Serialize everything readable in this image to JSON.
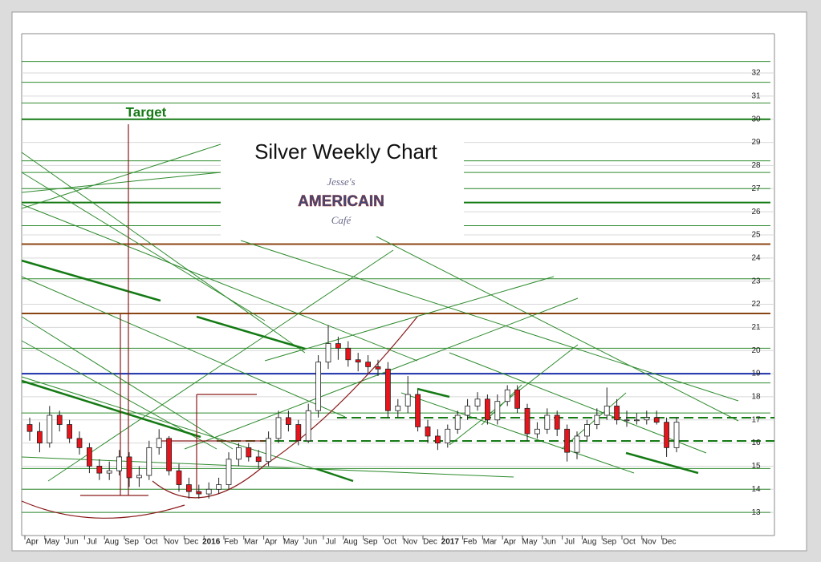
{
  "chart_data": {
    "type": "candlestick",
    "title": "Silver Weekly Chart",
    "annotation": "Target",
    "logo": {
      "line1": "Jesse's",
      "line2": "AMERICAIN",
      "line3": "Café"
    },
    "categories": [
      "Apr",
      null,
      "May",
      null,
      "Jun",
      null,
      "Jul",
      null,
      "Aug",
      null,
      "Sep",
      null,
      "Oct",
      null,
      "Nov",
      null,
      "Dec",
      null,
      "2016",
      null,
      "Feb",
      null,
      "Mar",
      null,
      "Apr",
      null,
      "May",
      null,
      "Jun",
      null,
      "Jul",
      null,
      "Aug",
      null,
      "Sep",
      null,
      "Oct",
      null,
      "Nov",
      null,
      "Dec",
      null,
      "2017",
      null,
      "Feb",
      null,
      "Mar",
      null,
      "Apr",
      null,
      "May",
      null,
      "Jun",
      null,
      "Jul",
      null,
      "Aug",
      null,
      "Sep",
      null,
      "Oct",
      null,
      "Nov",
      null,
      "Dec",
      null
    ],
    "open": [
      16.8,
      16.5,
      16.0,
      17.2,
      16.8,
      16.2,
      15.8,
      15.0,
      14.7,
      14.8,
      15.4,
      14.5,
      14.6,
      15.8,
      16.2,
      14.8,
      14.2,
      13.9,
      13.8,
      14.0,
      14.2,
      15.3,
      15.8,
      15.4,
      15.2,
      16.2,
      17.1,
      16.8,
      16.1,
      17.4,
      19.5,
      20.3,
      20.1,
      19.6,
      19.5,
      19.3,
      19.2,
      17.4,
      17.6,
      18.1,
      16.7,
      16.3,
      16.0,
      16.6,
      17.2,
      17.6,
      17.9,
      17.0,
      17.8,
      18.3,
      17.5,
      16.4,
      16.6,
      17.2,
      16.6,
      15.6,
      16.3,
      16.8,
      17.2,
      17.6,
      17.0,
      17.0,
      17.0,
      17.1,
      16.9,
      15.8
    ],
    "close": [
      16.5,
      16.0,
      17.2,
      16.8,
      16.2,
      15.8,
      15.0,
      14.7,
      14.8,
      15.4,
      14.5,
      14.6,
      15.8,
      16.2,
      14.8,
      14.2,
      13.9,
      13.8,
      14.0,
      14.2,
      15.3,
      15.8,
      15.4,
      15.2,
      16.2,
      17.1,
      16.8,
      16.1,
      17.4,
      19.5,
      20.3,
      20.1,
      19.6,
      19.5,
      19.3,
      19.2,
      17.4,
      17.6,
      18.1,
      16.7,
      16.3,
      16.0,
      16.6,
      17.2,
      17.6,
      17.9,
      17.0,
      17.8,
      18.3,
      17.5,
      16.4,
      16.6,
      17.2,
      16.6,
      15.6,
      16.3,
      16.8,
      17.2,
      17.6,
      17.0,
      17.0,
      17.0,
      17.1,
      16.9,
      15.8,
      16.9
    ],
    "high": [
      17.1,
      16.9,
      17.6,
      17.4,
      17.0,
      16.5,
      16.0,
      15.3,
      15.2,
      15.7,
      15.6,
      15.0,
      16.1,
      16.6,
      16.3,
      15.1,
      14.5,
      14.2,
      14.3,
      14.5,
      15.6,
      16.0,
      16.0,
      15.7,
      16.5,
      17.4,
      17.4,
      17.0,
      17.7,
      19.8,
      21.1,
      20.6,
      20.4,
      19.9,
      19.8,
      19.6,
      19.5,
      17.9,
      18.9,
      18.3,
      17.0,
      16.6,
      16.8,
      17.4,
      17.9,
      18.2,
      18.1,
      18.1,
      18.5,
      18.5,
      17.7,
      16.9,
      17.5,
      17.4,
      16.8,
      16.5,
      17.0,
      17.5,
      18.4,
      17.9,
      17.4,
      17.3,
      17.4,
      17.4,
      17.1,
      17.1
    ],
    "low": [
      16.1,
      15.6,
      15.8,
      16.5,
      16.0,
      15.5,
      14.7,
      14.4,
      14.4,
      14.6,
      14.1,
      14.1,
      14.4,
      15.5,
      14.6,
      13.9,
      13.6,
      13.6,
      13.6,
      13.8,
      14.0,
      15.0,
      15.2,
      14.9,
      15.0,
      16.0,
      16.5,
      15.9,
      16.0,
      17.1,
      19.2,
      19.6,
      19.3,
      19.1,
      19.0,
      18.9,
      17.1,
      17.1,
      17.3,
      16.5,
      16.0,
      15.7,
      15.8,
      16.4,
      17.0,
      17.4,
      16.8,
      16.8,
      17.6,
      17.3,
      16.1,
      16.2,
      16.4,
      16.3,
      15.2,
      15.3,
      16.1,
      16.6,
      17.0,
      16.8,
      16.7,
      16.8,
      16.8,
      16.8,
      15.4,
      15.6
    ],
    "up_color": "#ffffff",
    "down_color": "#e8141b",
    "levels": [
      {
        "value": 30,
        "color": "#147a14"
      },
      {
        "value": 26.4,
        "color": "#147a14"
      },
      {
        "value": 24.6,
        "color": "#8b4513"
      },
      {
        "value": 21.6,
        "color": "#8b4513"
      },
      {
        "value": 19,
        "color": "#1c2fa8"
      }
    ],
    "thin_levels": [
      32.5,
      31.6,
      30.7,
      28.2,
      27.7,
      27.0,
      25.4,
      23.1,
      20.1,
      18.6,
      17.3,
      14.9,
      14.0,
      13.0
    ],
    "thin_color": "#2e8b2e",
    "ylim": [
      12,
      33.7
    ],
    "yticks": [
      13,
      14,
      15,
      16,
      17,
      18,
      19,
      20,
      21,
      22,
      23,
      24,
      25,
      26,
      27,
      28,
      29,
      30,
      31,
      32
    ],
    "grid": true
  }
}
